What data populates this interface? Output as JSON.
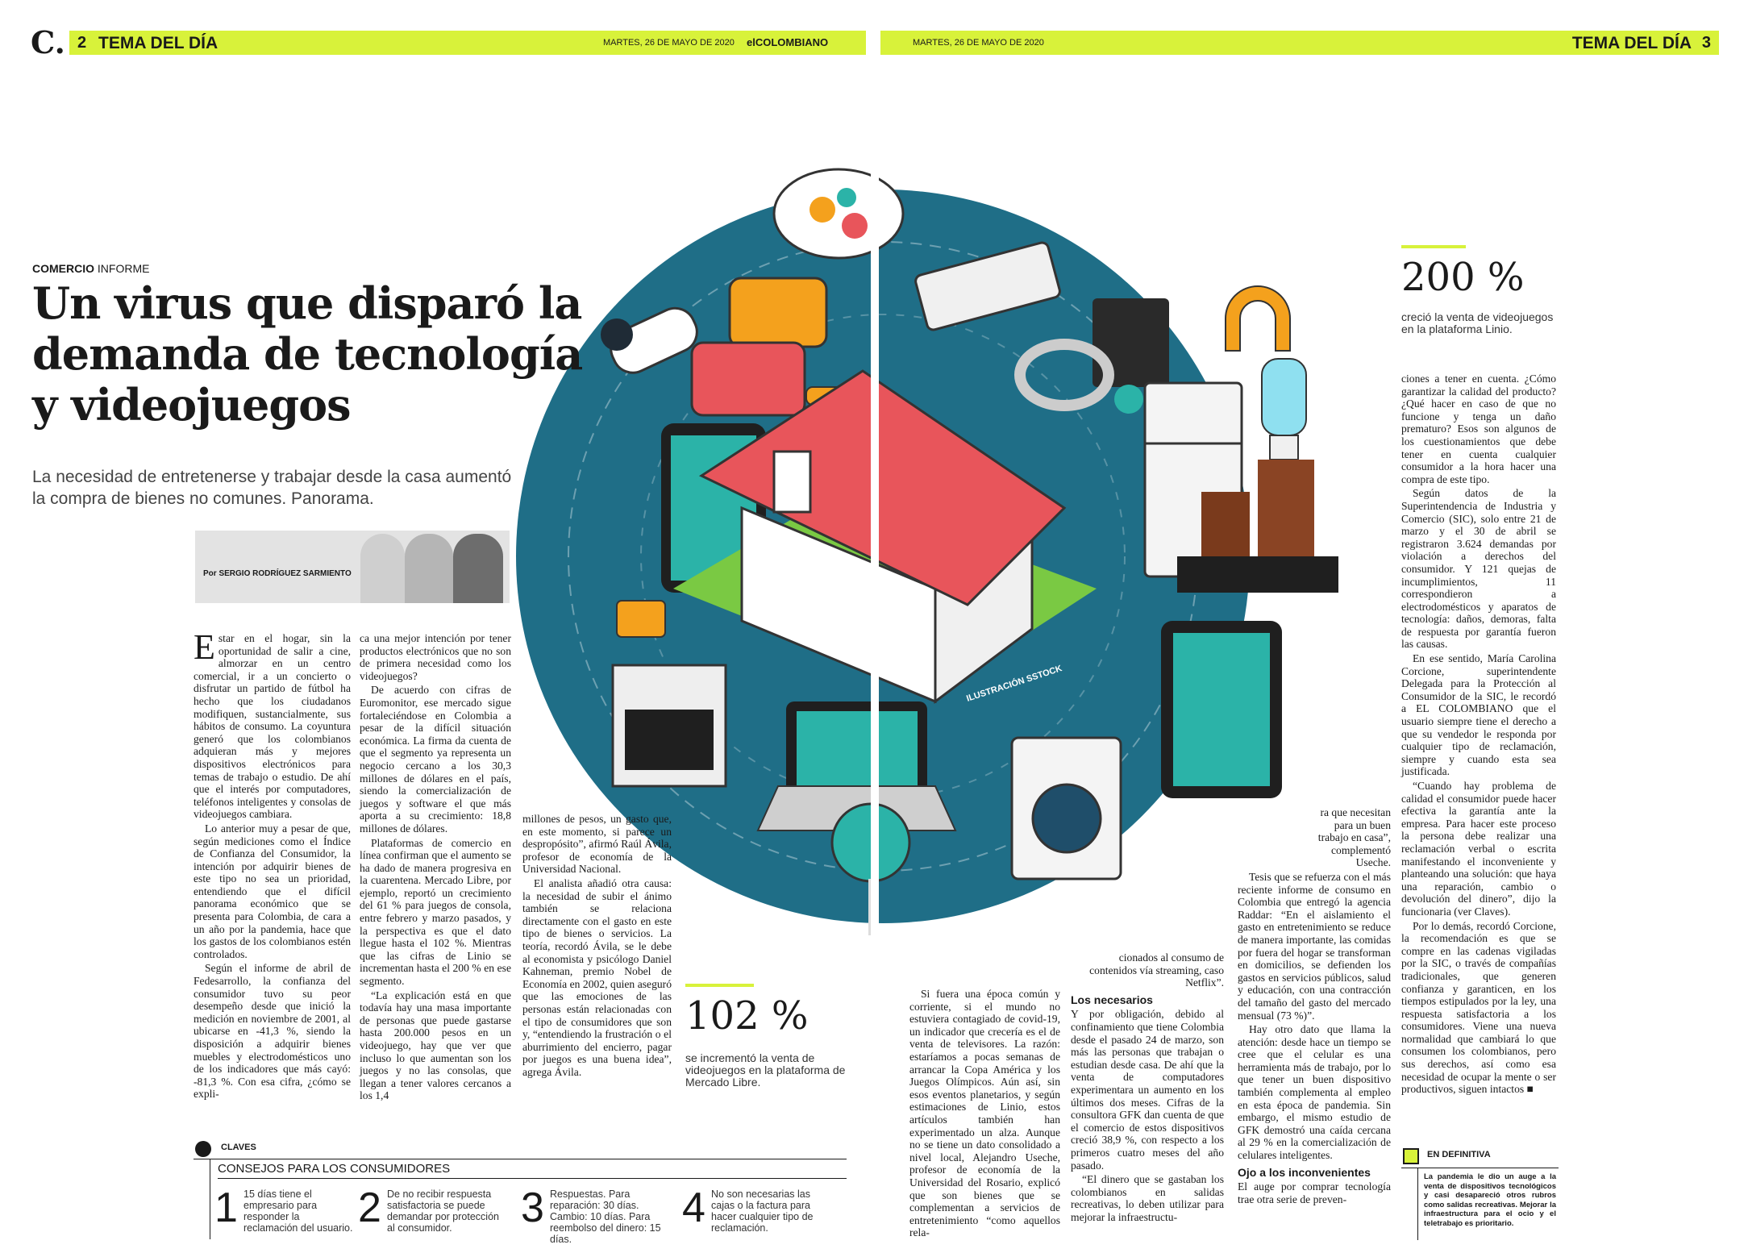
{
  "left_page": {
    "logo": "C.",
    "page_number": "2",
    "section": "TEMA DEL DÍA",
    "date": "MARTES, 26 DE MAYO DE 2020",
    "publication": "elCOLOMBIANO"
  },
  "right_page": {
    "date": "MARTES, 26 DE MAYO DE 2020",
    "section": "TEMA DEL DÍA",
    "page_number": "3"
  },
  "article": {
    "kicker_bold": "COMERCIO",
    "kicker_rest": "INFORME",
    "headline": "Un virus que disparó la demanda de tecnología y videojuegos",
    "subtitle": "La necesidad de entretenerse y trabajar desde la casa aumentó la compra de bienes no comunes. Panorama.",
    "byline": "Por SERGIO RODRÍGUEZ SARMIENTO",
    "illustration_credit": "ILUSTRACIÓN SSTOCK"
  },
  "columns": {
    "c1": [
      {
        "text": "Estar en el hogar, sin la oportunidad de salir a cine, almorzar en un centro comercial, ir a un concierto o disfrutar un partido de fútbol ha hecho que los ciudadanos modifiquen, sustancialmente, sus hábitos de consumo. La coyuntura generó que los colombianos adquieran más y mejores dispositivos electrónicos para temas de trabajo o estudio. De ahí que el interés por computadores, teléfonos inteligentes y consolas de videojuegos cambiara."
      },
      {
        "text": "Lo anterior muy a pesar de que, según mediciones como el Índice de Confianza del Consumidor, la intención por adquirir bienes de este tipo no sea un prioridad, entendiendo que el difícil panorama económico que se presenta para Colombia, de cara a un año por la pandemia, hace que los gastos de los colombianos estén controlados."
      },
      {
        "text": "Según el informe de abril de Fedesarrollo, la confianza del consumidor tuvo su peor desempeño desde que inició la medición en noviembre de 2001, al ubicarse en -41,3 %, siendo la disposición a adquirir bienes muebles y electrodomésticos uno de los indicadores que más cayó: -81,3 %. Con esa cifra, ¿cómo se expli-"
      }
    ],
    "c2": [
      {
        "text": "ca una mejor intención por tener productos electrónicos que no son de primera necesidad como los videojuegos?"
      },
      {
        "text": "De acuerdo con cifras de Euromonitor, ese mercado sigue fortaleciéndose en Colombia a pesar de la difícil situación económica. La firma da cuenta de que el segmento ya representa un negocio cercano a los 30,3 millones de dólares en el país, siendo la comercialización de juegos y software el que más aporta a su crecimiento: 18,8 millones de dólares."
      },
      {
        "text": "Plataformas de comercio en línea confirman que el aumento se ha dado de manera progresiva en la cuarentena. Mercado Libre, por ejemplo, reportó un crecimiento del 61 % para juegos de consola, entre febrero y marzo pasados, y la perspectiva es que el dato llegue hasta el 102 %. Mientras que las cifras de Linio se incrementan hasta el 200 % en ese segmento."
      },
      {
        "text": "“La explicación está en que todavía hay una masa importante de personas que puede gastarse hasta 200.000 pesos en un videojuego, hay que ver que incluso lo que aumentan son los juegos y no las consolas, que llegan a tener valores cercanos a los 1,4"
      }
    ],
    "c3": [
      {
        "text": "millones de pesos, un gasto que, en este momento, si parece un despropósito”, afirmó Raúl Ávila, profesor de economía de la Universidad Nacional."
      },
      {
        "text": "El analista añadió otra causa: la necesidad de subir el ánimo también se relaciona directamente con el gasto en este tipo de bienes o servicios. La teoría, recordó Ávila, se le debe al economista y psicólogo Daniel Kahneman, premio Nobel de Economía en 2002, quien aseguró que las emociones de las personas están relacionadas con el tipo de consumidores que son y, “entendiendo la frustración o el aburrimiento del encierro, pagar por juegos es una buena idea”, agrega Ávila."
      }
    ],
    "c4": [
      {
        "text": "Si fuera una época común y corriente, si el mundo no estuviera contagiado de covid-19, un indicador que crecería es el de venta de televisores. La razón: estaríamos a pocas semanas de arrancar la Copa América y los Juegos Olímpicos. Aún así, sin esos eventos planetarios, y según estimaciones de Linio, estos artículos también han experimentado un alza. Aunque no se tiene un dato consolidado a nivel local, Alejandro Useche, profesor de economía de la Universidad del Rosario, explicó que son bienes que se complementan a servicios de entretenimiento “como aquellos rela-"
      }
    ],
    "c5_top": "cionados al consumo de contenidos vía streaming, caso Netflix”.",
    "c5_head1": "Los necesarios",
    "c5": [
      {
        "text": "Y por obligación, debido al confinamiento que tiene Colombia desde el pasado 24 de marzo, son más las personas que trabajan o estudian desde casa. De ahí que la venta de computadores experimentara un aumento en los últimos dos meses. Cifras de la consultora GFK dan cuenta de que el comercio de estos dispositivos creció 38,9 %, con respecto a los primeros cuatro meses del año pasado."
      },
      {
        "text": "“El dinero que se gastaban los colombianos en salidas recreativas, lo deben utilizar para mejorar la infraestructu-"
      }
    ],
    "c6_top": "ra que necesitan para un buen trabajo en casa”, complementó Useche.",
    "c6": [
      {
        "text": "Tesis que se refuerza con el más reciente informe de consumo en Colombia que entregó la agencia Raddar: “En el aislamiento el gasto en entretenimiento se reduce de manera importante, las comidas por fuera del hogar se transforman en domicilios, se defienden los gastos en servicios públicos, salud y educación, con una contracción del tamaño del gasto del mercado mensual (73 %)”."
      },
      {
        "text": "Hay otro dato que llama la atención: desde hace un tiempo se cree que el celular es una herramienta más de trabajo, por lo que tener un buen dispositivo también complementa al empleo en esta época de pandemia. Sin embargo, el mismo estudio de GFK demostró una caída cercana al 29 % en la comercialización de celulares inteligentes."
      }
    ],
    "c6_head1": "Ojo a los inconvenientes",
    "c6_end": "El auge por comprar tecnología trae otra serie de preven-",
    "c7": [
      {
        "text": "ciones a tener en cuenta. ¿Cómo garantizar la calidad del producto? ¿Qué hacer en caso de que no funcione y tenga un daño prematuro? Esos son algunos de los cuestionamientos que debe tener en cuenta cualquier consumidor a la hora hacer una compra de este tipo."
      },
      {
        "text": "Según datos de la Superintendencia de Industria y Comercio (SIC), solo entre 21 de marzo y el 30 de abril se registraron 3.624 demandas por violación a derechos del consumidor. Y 121 quejas de incumplimientos, 11 correspondieron a electrodomésticos y aparatos de tecnología: daños, demoras, falta de respuesta por garantía fueron las causas."
      },
      {
        "text": "En ese sentido, María Carolina Corcione, superintendente Delegada para la Protección al Consumidor de la SIC, le recordó a EL COLOMBIANO que el usuario siempre tiene el derecho a que su vendedor le responda por cualquier tipo de reclamación, siempre y cuando esta sea justificada."
      },
      {
        "text": "“Cuando hay problema de calidad el consumidor puede hacer efectiva la garantía ante la empresa. Para hacer este proceso la persona debe realizar una reclamación verbal o escrita manifestando el inconveniente y planteando una solución: que haya una reparación, cambio o devolución del dinero”, dijo la funcionaria (ver Claves)."
      },
      {
        "text": "Por lo demás, recordó Corcione, la recomendación es que se compre en las cadenas vigiladas por la SIC, o través de compañías tradicionales, que generen confianza y garanticen, en los tiempos estipulados por la ley, una respuesta satisfactoria a los consumidores. Viene una nueva normalidad que cambiará lo que consumen los colombianos, pero sus derechos, así como esa necesidad de ocupar la mente o ser productivos, siguen intactos ■"
      }
    ]
  },
  "stats": {
    "s1_value": "102 %",
    "s1_caption": "se incrementó la venta de videojuegos en la plataforma de Mercado Libre.",
    "s2_value": "200 %",
    "s2_caption": "creció la venta de videojuegos en la plataforma Linio."
  },
  "claves": {
    "label": "CLAVES",
    "title": "CONSEJOS PARA LOS CONSUMIDORES",
    "items": [
      {
        "num": "1",
        "text": "15 días tiene el empresario para responder la reclamación del usuario."
      },
      {
        "num": "2",
        "text": "De no recibir respuesta satisfactoria se puede demandar por protección al consumidor."
      },
      {
        "num": "3",
        "text": "Respuestas. Para reparación: 30 días. Cambio: 10 días. Para reembolso del dinero: 15 días."
      },
      {
        "num": "4",
        "text": "No son necesarias las cajas o la factura para hacer cualquier tipo de reclamación."
      }
    ]
  },
  "en_definitiva": {
    "label": "EN DEFINITIVA",
    "text": "La pandemia le dio un auge a la venta de dispositivos tecnológicos y casi desapareció otros rubros como salidas recreativas. Mejorar la infraestructura para el ocio y el teletrabajo es prioritario."
  },
  "colors": {
    "accent": "#d8f23a",
    "circle": "#1f6e87",
    "roof": "#e8555b",
    "teal": "#2bb3a8"
  }
}
